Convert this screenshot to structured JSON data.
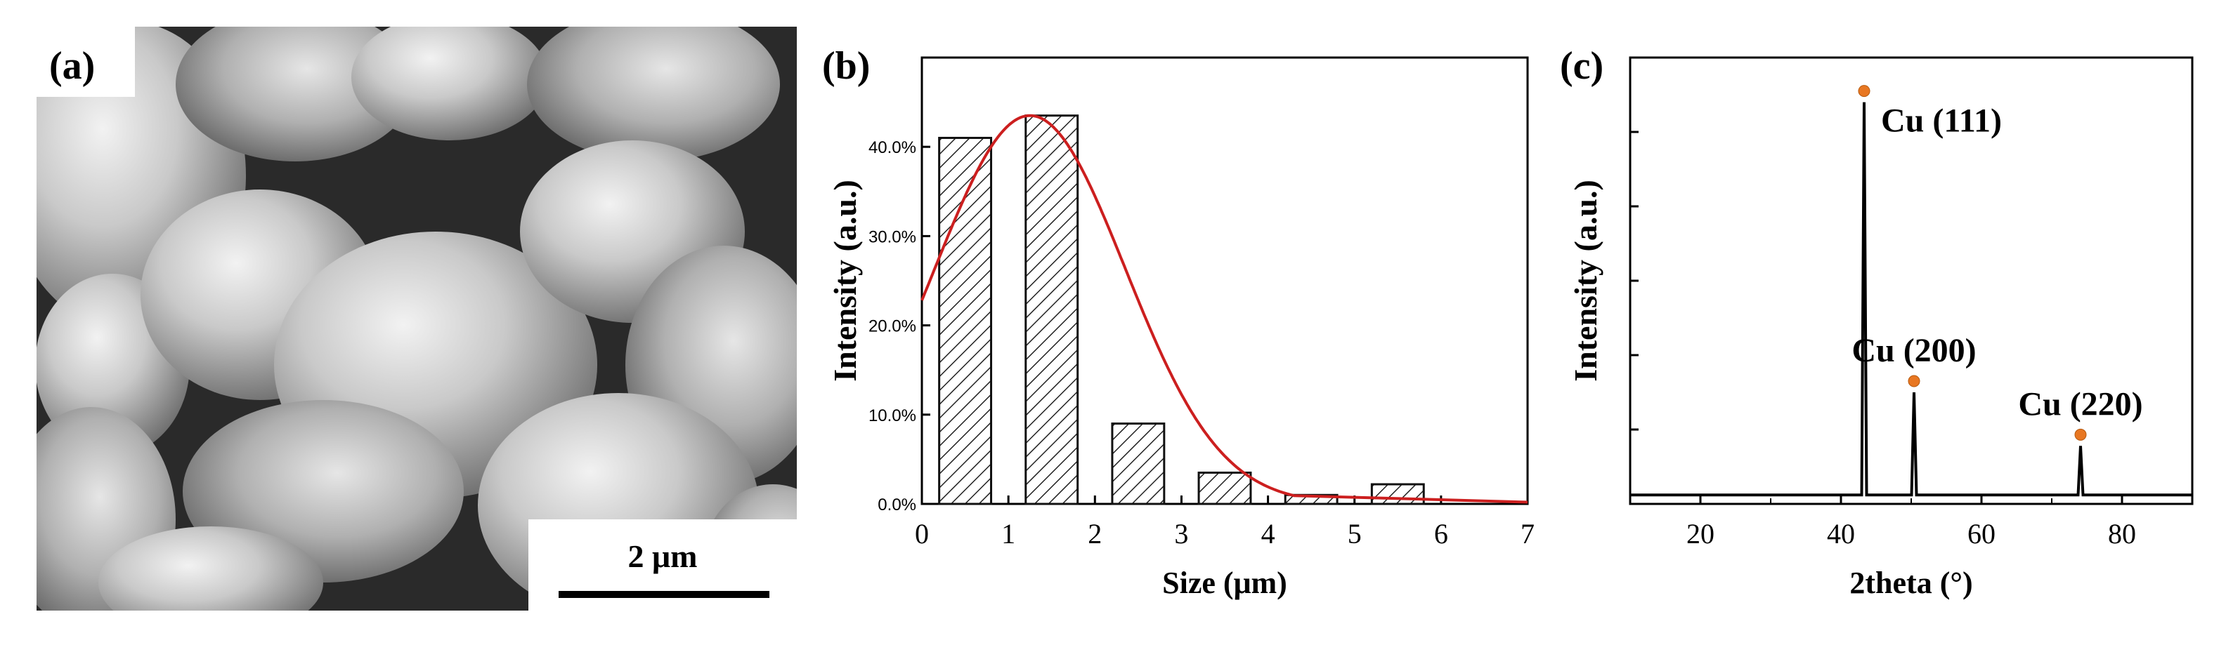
{
  "panel_a": {
    "label": "(a)",
    "scale_bar_label": "2 μm",
    "image_description_icon": "sem-micrograph-icon"
  },
  "chart_data": [
    {
      "type": "bar",
      "panel_label": "(b)",
      "title": "",
      "xlabel": "Size (μm)",
      "ylabel": "Intensity (a.u.)",
      "xlim": [
        0,
        7
      ],
      "ylim": [
        0,
        0.5
      ],
      "x_ticks": [
        0,
        1,
        2,
        3,
        4,
        5,
        6,
        7
      ],
      "y_ticks": [
        0.0,
        0.1,
        0.2,
        0.3,
        0.4
      ],
      "y_tick_labels": [
        "0.0%",
        "10.0%",
        "20.0%",
        "30.0%",
        "40.0%"
      ],
      "bins": [
        {
          "center": 0.5,
          "value": 0.41
        },
        {
          "center": 1.5,
          "value": 0.435
        },
        {
          "center": 2.5,
          "value": 0.09
        },
        {
          "center": 3.5,
          "value": 0.035
        },
        {
          "center": 4.5,
          "value": 0.01
        },
        {
          "center": 5.5,
          "value": 0.022
        }
      ],
      "bin_width": 0.6,
      "fit_curve": {
        "type": "gaussian",
        "peak_x": 1.25,
        "peak_y": 0.435,
        "sigma": 1.1,
        "x_end": 4.3,
        "color": "#cc1f1f"
      }
    },
    {
      "type": "line",
      "panel_label": "(c)",
      "title": "",
      "xlabel": "2theta (°)",
      "ylabel": "Intensity (a.u.)",
      "xlim": [
        10,
        90
      ],
      "ylim": [
        0,
        100
      ],
      "x_ticks": [
        20,
        40,
        60,
        80
      ],
      "baseline": 2,
      "peaks": [
        {
          "x": 43.3,
          "height": 90,
          "label": "Cu (111)"
        },
        {
          "x": 50.4,
          "height": 25,
          "label": "Cu (200)"
        },
        {
          "x": 74.1,
          "height": 13,
          "label": "Cu (220)"
        }
      ],
      "marker_color": "#e87722",
      "line_color": "#000000"
    }
  ]
}
